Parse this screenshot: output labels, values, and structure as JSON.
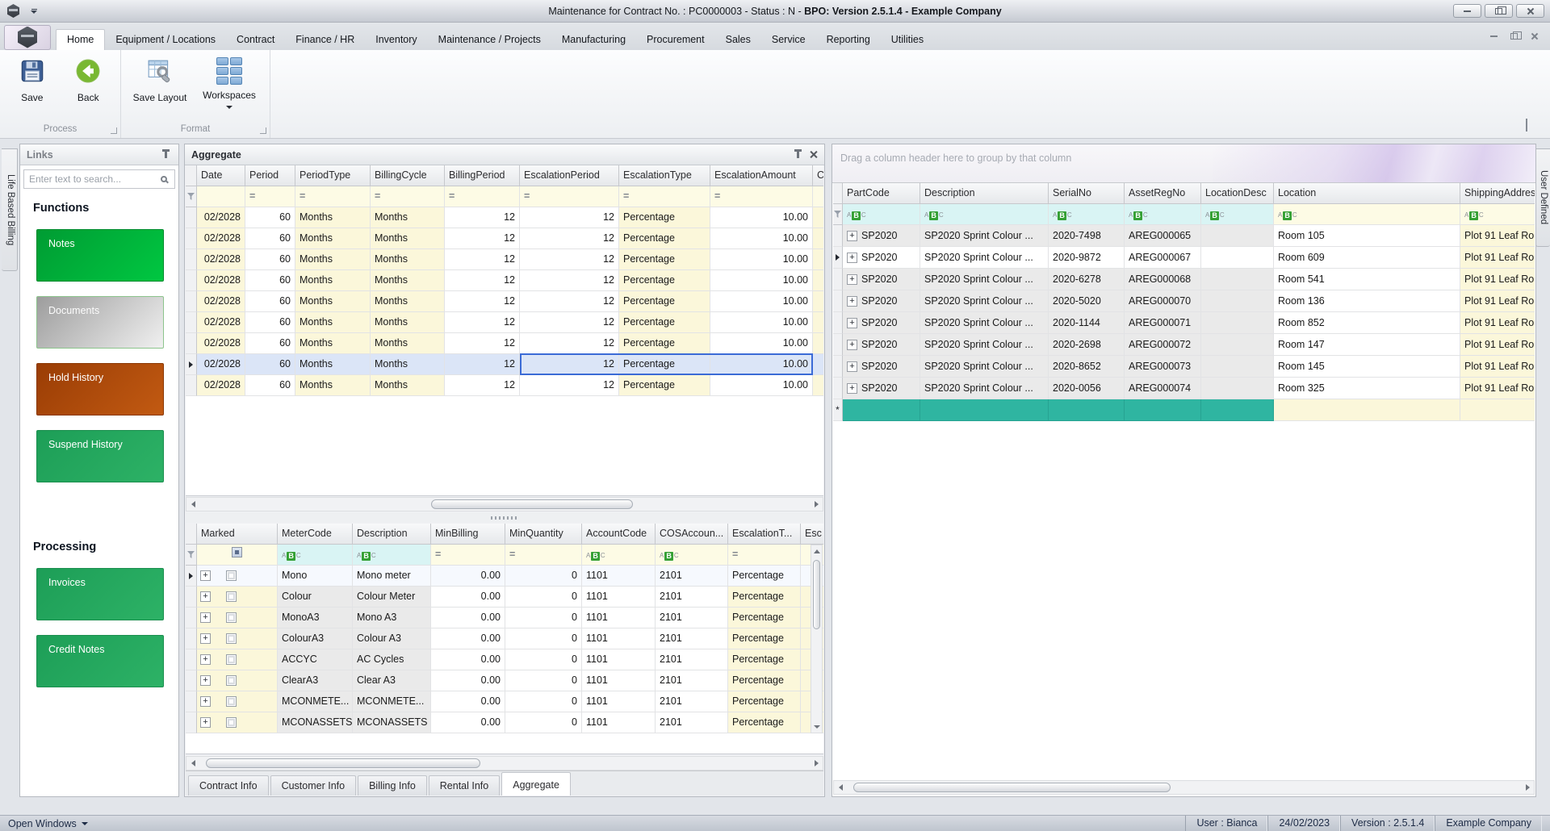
{
  "window": {
    "title_prefix": "Maintenance for Contract No. : PC0000003 - Status : N - ",
    "title_bold": "BPO: Version 2.5.1.4 - Example Company"
  },
  "menu": {
    "active_tab": "Home",
    "tabs": [
      "Home",
      "Equipment / Locations",
      "Contract",
      "Finance / HR",
      "Inventory",
      "Maintenance / Projects",
      "Manufacturing",
      "Procurement",
      "Sales",
      "Service",
      "Reporting",
      "Utilities"
    ]
  },
  "ribbon": {
    "save_label": "Save",
    "back_label": "Back",
    "save_layout_label": "Save Layout",
    "workspaces_label": "Workspaces",
    "process_group_label": "Process",
    "format_group_label": "Format"
  },
  "dock_tabs": {
    "left": "Life Based Billing",
    "right": "User Defined"
  },
  "links_panel": {
    "title": "Links",
    "search_placeholder": "Enter text to search...",
    "functions_heading": "Functions",
    "function_buttons": [
      {
        "label": "Notes",
        "style": "green-bright"
      },
      {
        "label": "Documents",
        "style": "silver"
      },
      {
        "label": "Hold History",
        "style": "orange"
      },
      {
        "label": "Suspend History",
        "style": "green-mid"
      }
    ],
    "processing_heading": "Processing",
    "processing_buttons": [
      {
        "label": "Invoices",
        "style": "green-mid"
      },
      {
        "label": "Credit Notes",
        "style": "green-mid"
      }
    ]
  },
  "aggregate_panel": {
    "title": "Aggregate",
    "columns": [
      "Date",
      "Period",
      "PeriodType",
      "BillingCycle",
      "BillingPeriod",
      "EscalationPeriod",
      "EscalationType",
      "EscalationAmount"
    ],
    "clipped_column": "C",
    "filter_ops": [
      "",
      "=",
      "=",
      "=",
      "=",
      "=",
      "=",
      "="
    ],
    "row_values": [
      "02/2028",
      "60",
      "Months",
      "Months",
      "12",
      "12",
      "Percentage",
      "10.00"
    ],
    "row_count": 9,
    "selected_row_index": 7
  },
  "meter_grid": {
    "columns": [
      "Marked",
      "MeterCode",
      "Description",
      "MinBilling",
      "MinQuantity",
      "AccountCode",
      "COSAccoun...",
      "EscalationT..."
    ],
    "clipped_column": "Esc",
    "filter_kinds": [
      "checkbox",
      "text",
      "text",
      "equals",
      "equals",
      "text",
      "text",
      "equals"
    ],
    "rows": [
      [
        "Mono",
        "Mono meter",
        "0.00",
        "0",
        "1101",
        "2101",
        "Percentage"
      ],
      [
        "Colour",
        "Colour Meter",
        "0.00",
        "0",
        "1101",
        "2101",
        "Percentage"
      ],
      [
        "MonoA3",
        "Mono A3",
        "0.00",
        "0",
        "1101",
        "2101",
        "Percentage"
      ],
      [
        "ColourA3",
        "Colour A3",
        "0.00",
        "0",
        "1101",
        "2101",
        "Percentage"
      ],
      [
        "ACCYC",
        "AC Cycles",
        "0.00",
        "0",
        "1101",
        "2101",
        "Percentage"
      ],
      [
        "ClearA3",
        "Clear A3",
        "0.00",
        "0",
        "1101",
        "2101",
        "Percentage"
      ],
      [
        "MCONMETE...",
        "MCONMETE...",
        "0.00",
        "0",
        "1101",
        "2101",
        "Percentage"
      ],
      [
        "MCONASSETS",
        "MCONASSETS",
        "0.00",
        "0",
        "1101",
        "2101",
        "Percentage"
      ]
    ],
    "selected_row_index": 0
  },
  "doc_tabs": {
    "active_tab": "Aggregate",
    "tabs": [
      "Contract Info",
      "Customer Info",
      "Billing Info",
      "Rental Info",
      "Aggregate"
    ]
  },
  "equipment_grid": {
    "group_by_hint": "Drag a column header here to group by that column",
    "columns": [
      "PartCode",
      "Description",
      "SerialNo",
      "AssetRegNo",
      "LocationDesc",
      "Location",
      "ShippingAddres"
    ],
    "filter_kinds": [
      "text",
      "text",
      "text",
      "text",
      "text",
      "text",
      "text"
    ],
    "rows": [
      [
        "SP2020",
        "SP2020 Sprint Colour ...",
        "2020-7498",
        "AREG000065",
        "",
        "Room 105",
        "Plot 91 Leaf Ro"
      ],
      [
        "SP2020",
        "SP2020 Sprint Colour ...",
        "2020-9872",
        "AREG000067",
        "",
        "Room 609",
        "Plot 91 Leaf Ro"
      ],
      [
        "SP2020",
        "SP2020 Sprint Colour ...",
        "2020-6278",
        "AREG000068",
        "",
        "Room 541",
        "Plot 91 Leaf Ro"
      ],
      [
        "SP2020",
        "SP2020 Sprint Colour ...",
        "2020-5020",
        "AREG000070",
        "",
        "Room 136",
        "Plot 91 Leaf Ro"
      ],
      [
        "SP2020",
        "SP2020 Sprint Colour ...",
        "2020-1144",
        "AREG000071",
        "",
        "Room 852",
        "Plot 91 Leaf Ro"
      ],
      [
        "SP2020",
        "SP2020 Sprint Colour ...",
        "2020-2698",
        "AREG000072",
        "",
        "Room 147",
        "Plot 91 Leaf Ro"
      ],
      [
        "SP2020",
        "SP2020 Sprint Colour ...",
        "2020-8652",
        "AREG000073",
        "",
        "Room 145",
        "Plot 91 Leaf Ro"
      ],
      [
        "SP2020",
        "SP2020 Sprint Colour ...",
        "2020-0056",
        "AREG000074",
        "",
        "Room 325",
        "Plot 91 Leaf Ro"
      ]
    ],
    "selected_row_index": 1
  },
  "status_bar": {
    "open_windows_label": "Open Windows",
    "items": [
      "User : Bianca",
      "24/02/2023",
      "Version : 2.5.1.4",
      "Example Company"
    ]
  },
  "colors": {
    "selection_border": "#3b6bd6",
    "new_row_teal": "#2fb5a1",
    "cell_yellow": "#fbf7da",
    "filter_cyan": "#d9f4f4",
    "function_green": "#00a839",
    "processing_green": "#1f9f58",
    "hold_orange": "#b24a0b"
  }
}
